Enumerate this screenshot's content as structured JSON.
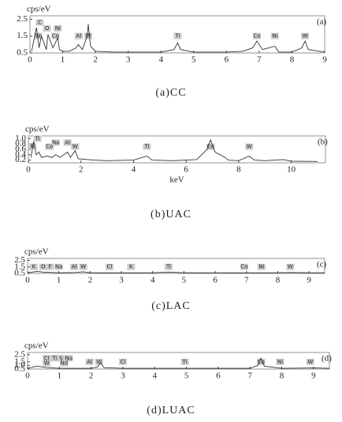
{
  "chart_data": [
    {
      "type": "line",
      "ylabel": "cps/eV",
      "panel_label": "(a)",
      "caption": "(a)CC",
      "color": "#333",
      "x": [
        0.05,
        0.2,
        0.28,
        0.35,
        0.5,
        0.55,
        0.7,
        0.85,
        0.9,
        1.0,
        1.2,
        1.4,
        1.48,
        1.6,
        1.75,
        1.78,
        1.85,
        2.0,
        2.5,
        3.0,
        3.5,
        4.0,
        4.4,
        4.51,
        4.6,
        5.0,
        5.5,
        6.0,
        6.5,
        6.8,
        6.93,
        7.1,
        7.48,
        7.6,
        8.0,
        8.3,
        8.4,
        8.5,
        9.0
      ],
      "values": [
        0.6,
        2.0,
        0.8,
        1.5,
        0.7,
        1.6,
        0.8,
        1.4,
        0.7,
        0.6,
        0.6,
        0.8,
        1.0,
        0.7,
        1.5,
        2.2,
        0.9,
        0.6,
        0.55,
        0.55,
        0.55,
        0.55,
        0.7,
        1.1,
        0.7,
        0.55,
        0.55,
        0.55,
        0.6,
        0.8,
        1.2,
        0.7,
        0.9,
        0.55,
        0.55,
        0.8,
        1.2,
        0.7,
        0.55
      ],
      "xlim": [
        0,
        9
      ],
      "xticks": [
        0,
        1,
        2,
        3,
        4,
        5,
        6,
        7,
        8,
        9
      ],
      "ylim": [
        0.5,
        2.7
      ],
      "yticks": [
        {
          "value": 0.5,
          "label": "0.5"
        },
        {
          "value": 1.5,
          "label": "1.5"
        },
        {
          "value": 2.5,
          "label": "2.5"
        }
      ],
      "annotations": [
        {
          "text": "C",
          "x": 0.3,
          "y": 2.3
        },
        {
          "text": "O",
          "x": 0.52,
          "y": 1.95
        },
        {
          "text": "Ni",
          "x": 0.85,
          "y": 1.95
        },
        {
          "text": "W",
          "x": 0.25,
          "y": 1.5
        },
        {
          "text": "Co",
          "x": 0.78,
          "y": 1.5
        },
        {
          "text": "Al",
          "x": 1.49,
          "y": 1.5
        },
        {
          "text": "W",
          "x": 1.78,
          "y": 1.5
        },
        {
          "text": "Ti",
          "x": 4.51,
          "y": 1.5
        },
        {
          "text": "Co",
          "x": 6.93,
          "y": 1.5
        },
        {
          "text": "Ni",
          "x": 7.48,
          "y": 1.5
        },
        {
          "text": "W",
          "x": 8.4,
          "y": 1.5
        }
      ]
    },
    {
      "type": "line",
      "ylabel": "cps/eV",
      "panel_label": "(b)",
      "caption": "(b)UAC",
      "xlabel": "keV",
      "color": "#333",
      "x": [
        0.1,
        0.2,
        0.3,
        0.4,
        0.5,
        0.7,
        0.9,
        1.04,
        1.2,
        1.49,
        1.6,
        1.78,
        1.9,
        2.5,
        3,
        4,
        4.51,
        4.7,
        5.5,
        6,
        6.4,
        6.8,
        6.93,
        7.1,
        7.48,
        7.6,
        8,
        8.4,
        8.6,
        9,
        9.7,
        10,
        11
      ],
      "values": [
        0.3,
        0.9,
        0.4,
        0.5,
        0.3,
        0.35,
        0.3,
        0.4,
        0.3,
        0.5,
        0.3,
        0.55,
        0.25,
        0.2,
        0.18,
        0.2,
        0.35,
        0.2,
        0.18,
        0.2,
        0.22,
        0.6,
        0.95,
        0.5,
        0.3,
        0.2,
        0.18,
        0.35,
        0.2,
        0.18,
        0.22,
        0.16,
        0.15
      ],
      "xlim": [
        0,
        11.3
      ],
      "xticks": [
        0,
        2,
        4,
        6,
        8,
        10
      ],
      "ylim": [
        0.1,
        1.1
      ],
      "yticks": [
        0.2,
        0.4,
        0.6,
        0.8,
        {
          "value": 1.0,
          "label": "1.0"
        }
      ],
      "annotations": [
        {
          "text": "Ti",
          "x": 0.35,
          "y": 1.0
        },
        {
          "text": "Na",
          "x": 1.04,
          "y": 0.85
        },
        {
          "text": "Al",
          "x": 1.49,
          "y": 0.85
        },
        {
          "text": "B",
          "x": 0.15,
          "y": 0.72
        },
        {
          "text": "Co",
          "x": 0.8,
          "y": 0.7
        },
        {
          "text": "W",
          "x": 1.78,
          "y": 0.7
        },
        {
          "text": "Ti",
          "x": 4.51,
          "y": 0.7
        },
        {
          "text": "Co",
          "x": 6.93,
          "y": 0.7
        },
        {
          "text": "W",
          "x": 8.4,
          "y": 0.7
        }
      ]
    },
    {
      "type": "line",
      "ylabel": "cps/eV",
      "panel_label": "(c)",
      "caption": "(c)LAC",
      "color": "#333",
      "x": [
        0,
        0.3,
        0.5,
        1,
        1.5,
        1.78,
        2,
        3,
        4,
        4.51,
        5,
        6,
        7,
        7.5,
        8,
        8.4,
        9,
        9.5
      ],
      "values": [
        0.6,
        0.8,
        0.7,
        0.6,
        0.65,
        0.75,
        0.6,
        0.6,
        0.6,
        0.7,
        0.6,
        0.6,
        0.6,
        0.6,
        0.6,
        0.65,
        0.6,
        0.6
      ],
      "xlim": [
        0,
        9.5
      ],
      "xticks": [
        0,
        1,
        2,
        3,
        4,
        5,
        6,
        7,
        8,
        9
      ],
      "ylim": [
        0.5,
        2.8
      ],
      "yticks": [
        {
          "value": 0.5,
          "label": "0.5"
        },
        {
          "value": 1.5,
          "label": "1.5"
        },
        {
          "value": 2.5,
          "label": "2.5"
        }
      ],
      "annotations": [
        {
          "text": "K",
          "x": 0.2,
          "y": 1.5
        },
        {
          "text": "O",
          "x": 0.5,
          "y": 1.5
        },
        {
          "text": "F",
          "x": 0.72,
          "y": 1.5
        },
        {
          "text": "Na",
          "x": 1.0,
          "y": 1.5
        },
        {
          "text": "Al",
          "x": 1.49,
          "y": 1.5
        },
        {
          "text": "W",
          "x": 1.78,
          "y": 1.5
        },
        {
          "text": "Cl",
          "x": 2.62,
          "y": 1.5
        },
        {
          "text": "K",
          "x": 3.31,
          "y": 1.5
        },
        {
          "text": "Ti",
          "x": 4.51,
          "y": 1.5
        },
        {
          "text": "Co",
          "x": 6.93,
          "y": 1.5
        },
        {
          "text": "Ni",
          "x": 7.48,
          "y": 1.5
        },
        {
          "text": "W",
          "x": 8.4,
          "y": 1.5
        }
      ]
    },
    {
      "type": "line",
      "ylabel": "cps/eV",
      "panel_label": "(d)",
      "caption": "(d)LUAC",
      "color": "#333",
      "x": [
        0,
        0.3,
        0.6,
        1,
        1.5,
        2,
        2.2,
        2.3,
        2.4,
        3,
        4,
        5,
        6,
        7,
        7.25,
        7.35,
        7.45,
        8,
        9,
        9.5
      ],
      "values": [
        0.6,
        0.9,
        0.7,
        0.6,
        0.6,
        0.6,
        0.8,
        1.4,
        0.7,
        0.6,
        0.6,
        0.6,
        0.6,
        0.6,
        1.0,
        2.0,
        0.9,
        0.6,
        0.65,
        0.6
      ],
      "xlim": [
        0,
        9.5
      ],
      "xticks": [
        0,
        1,
        2,
        3,
        4,
        5,
        6,
        7,
        8,
        9
      ],
      "ylim": [
        0.5,
        2.8
      ],
      "yticks": [
        {
          "value": 0.5,
          "label": "0.5"
        },
        {
          "value": 1.0,
          "label": "1.0"
        },
        {
          "value": 1.5,
          "label": "1.5"
        },
        {
          "value": 2.5,
          "label": "2.5"
        }
      ],
      "annotations": [
        {
          "text": "Cl",
          "x": 0.6,
          "y": 2.0
        },
        {
          "text": "Ti",
          "x": 0.85,
          "y": 2.0
        },
        {
          "text": "S",
          "x": 1.05,
          "y": 2.0
        },
        {
          "text": "Na",
          "x": 1.3,
          "y": 2.0
        },
        {
          "text": "W",
          "x": 0.6,
          "y": 1.3
        },
        {
          "text": "Nd",
          "x": 1.15,
          "y": 1.3
        },
        {
          "text": "Al",
          "x": 1.95,
          "y": 1.5
        },
        {
          "text": "W",
          "x": 2.25,
          "y": 1.5
        },
        {
          "text": "Cl",
          "x": 3.0,
          "y": 1.5
        },
        {
          "text": "Ti",
          "x": 4.95,
          "y": 1.5
        },
        {
          "text": "Co",
          "x": 7.35,
          "y": 1.5
        },
        {
          "text": "Ni",
          "x": 7.95,
          "y": 1.5
        },
        {
          "text": "W",
          "x": 8.9,
          "y": 1.5
        }
      ]
    }
  ]
}
